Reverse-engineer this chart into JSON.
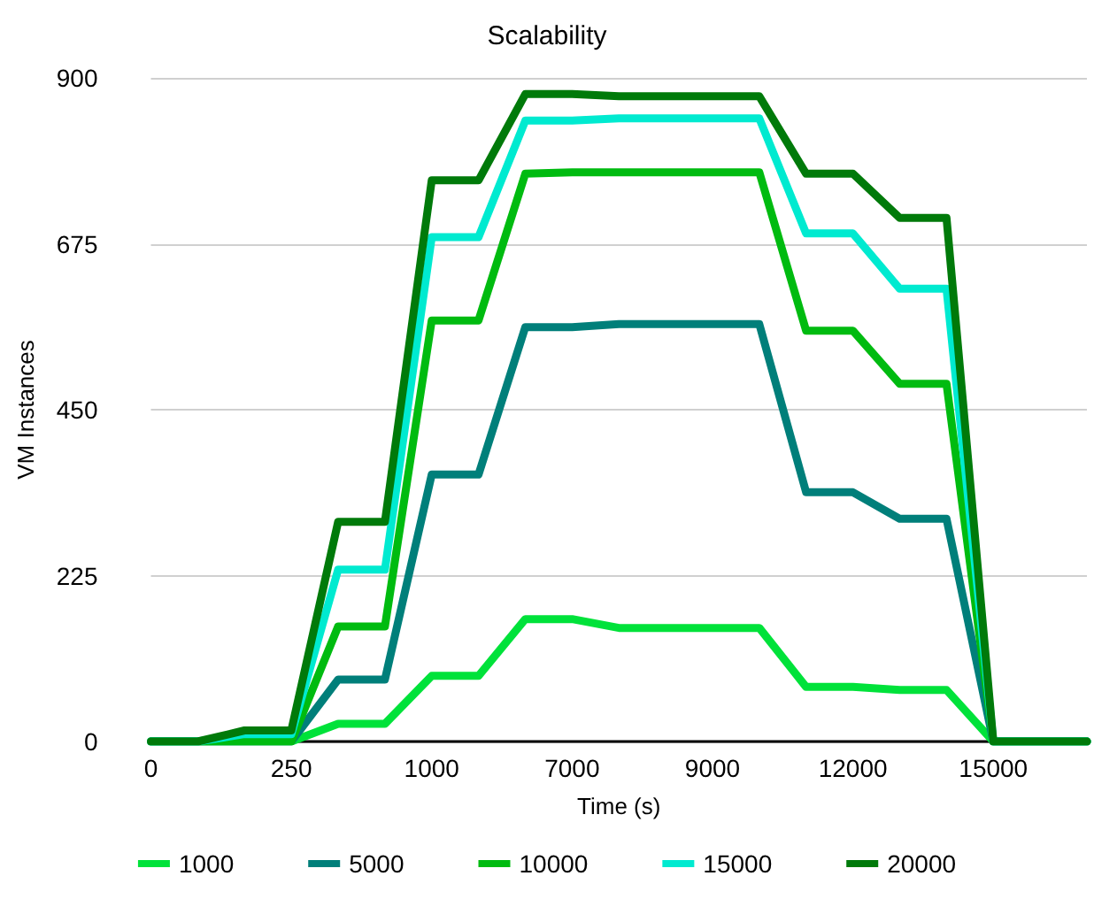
{
  "chart_data": {
    "type": "line",
    "title": "Scalability",
    "xlabel": "Time (s)",
    "ylabel": "VM Instances",
    "categories": [
      "0",
      null,
      null,
      "250",
      null,
      null,
      "1000",
      null,
      null,
      "7000",
      null,
      null,
      "9000",
      null,
      null,
      "12000",
      null,
      null,
      "15000",
      null,
      null
    ],
    "ylim": [
      0,
      900
    ],
    "yticks": [
      0,
      225,
      450,
      675,
      900
    ],
    "grid": "y",
    "legend": "bottom",
    "marker": "none",
    "line_style": "solid",
    "series": [
      {
        "name": "1000",
        "color": "#00e23a",
        "values": [
          0,
          0,
          0,
          0,
          24,
          24,
          89,
          89,
          166,
          166,
          154,
          154,
          154,
          154,
          74,
          74,
          70,
          70,
          0,
          0,
          0
        ]
      },
      {
        "name": "5000",
        "color": "#007f7a",
        "values": [
          0,
          0,
          0,
          0,
          84,
          84,
          362,
          362,
          562,
          562,
          566,
          566,
          566,
          566,
          338,
          338,
          302,
          302,
          0,
          0,
          0
        ]
      },
      {
        "name": "10000",
        "color": "#00bb10",
        "values": [
          0,
          0,
          0,
          0,
          156,
          156,
          571,
          571,
          770,
          772,
          772,
          772,
          772,
          772,
          557,
          557,
          485,
          485,
          0,
          0,
          0
        ]
      },
      {
        "name": "15000",
        "color": "#00ead0",
        "values": [
          0,
          0,
          10,
          10,
          233,
          233,
          684,
          684,
          842,
          842,
          845,
          845,
          845,
          845,
          689,
          689,
          614,
          614,
          0,
          0,
          0
        ]
      },
      {
        "name": "20000",
        "color": "#007a0a",
        "values": [
          0,
          0,
          15,
          15,
          298,
          298,
          761,
          761,
          878,
          878,
          875,
          875,
          875,
          875,
          770,
          770,
          710,
          710,
          0,
          0,
          0
        ]
      }
    ]
  }
}
